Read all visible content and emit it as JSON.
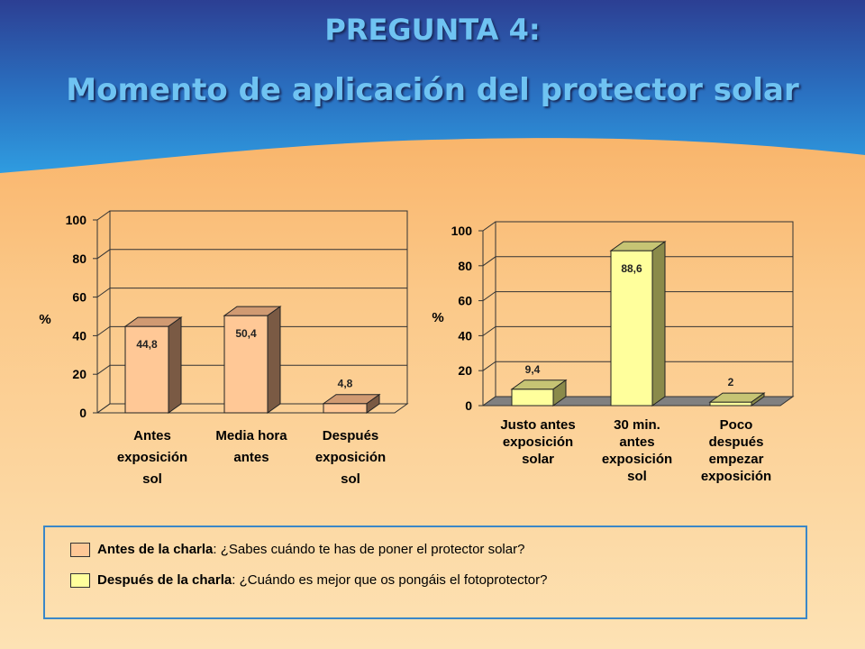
{
  "title_line1": "PREGUNTA 4:",
  "title_line2": "Momento de aplicación del protector solar",
  "colors": {
    "before_fill": "#ffc896",
    "after_fill": "#ffff9c",
    "floor": "#808080",
    "top_bg": "#2e4fa0",
    "bottom_bg": "#fce0b0"
  },
  "chart_data": [
    {
      "type": "bar",
      "ylabel": "%",
      "ylim": [
        0,
        100
      ],
      "yticks": [
        "0",
        "20",
        "40",
        "60",
        "80",
        "100"
      ],
      "categories": [
        [
          "Antes",
          "exposición",
          "sol"
        ],
        [
          "Media hora",
          "antes"
        ],
        [
          "Después",
          "exposición",
          "sol"
        ]
      ],
      "values": [
        44.8,
        50.4,
        4.8
      ],
      "value_labels": [
        "44,8",
        "50,4",
        "4,8"
      ]
    },
    {
      "type": "bar",
      "ylabel": "%",
      "ylim": [
        0,
        100
      ],
      "yticks": [
        "0",
        "20",
        "40",
        "60",
        "80",
        "100"
      ],
      "categories": [
        [
          "Justo antes",
          "exposición",
          "solar"
        ],
        [
          "30 min.",
          "antes",
          "exposición",
          "sol"
        ],
        [
          "Poco",
          "después",
          "empezar",
          "exposición"
        ]
      ],
      "values": [
        9.4,
        88.6,
        2
      ],
      "value_labels": [
        "9,4",
        "88,6",
        "2"
      ]
    }
  ],
  "legend": [
    {
      "name": "Antes de la charla",
      "text": ": ¿Sabes cuándo te has de poner el protector solar?"
    },
    {
      "name": "Después de la charla",
      "text": ": ¿Cuándo es mejor que os pongáis el fotoprotector?"
    }
  ]
}
